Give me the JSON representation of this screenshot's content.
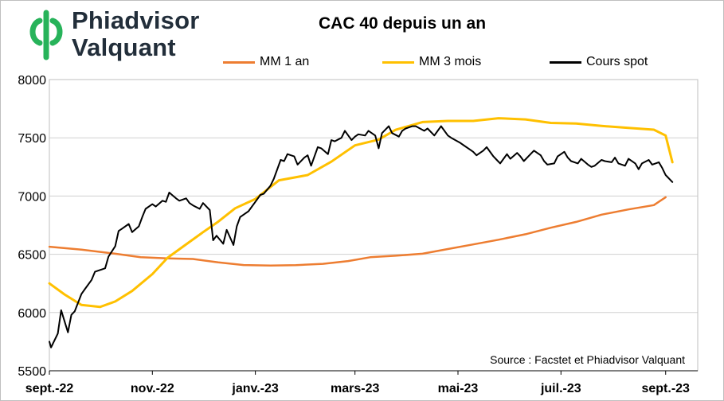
{
  "logo": {
    "line1": "Phiadvisor",
    "line2": "Valquant",
    "icon": "phi-logo-icon",
    "brand_green": "#27b35a",
    "brand_dark": "#222e3a"
  },
  "source": "Source : Facstet et Phiadvisor Valquant",
  "chart_data": {
    "type": "line",
    "title": "CAC 40 depuis un an",
    "xlabel": "",
    "ylabel": "",
    "ylim": [
      5500,
      8000
    ],
    "yticks": [
      5500,
      6000,
      6500,
      7000,
      7500,
      8000
    ],
    "xlim": [
      "2022-09-01",
      "2023-09-20"
    ],
    "xticks": [
      {
        "date": "2022-09-01",
        "label": "sept.-22"
      },
      {
        "date": "2022-11-01",
        "label": "nov.-22"
      },
      {
        "date": "2023-01-01",
        "label": "janv.-23"
      },
      {
        "date": "2023-03-01",
        "label": "mars-23"
      },
      {
        "date": "2023-05-01",
        "label": "mai-23"
      },
      {
        "date": "2023-07-01",
        "label": "juil.-23"
      },
      {
        "date": "2023-09-01",
        "label": "sept.-23"
      }
    ],
    "grid": "horizontal",
    "legend_position": "top",
    "series": [
      {
        "name": "MM 1 an",
        "color": "#ed7d31",
        "x": [
          "2022-09-01",
          "2022-09-20",
          "2022-10-10",
          "2022-10-25",
          "2022-11-10",
          "2022-11-25",
          "2022-12-10",
          "2022-12-25",
          "2023-01-10",
          "2023-01-25",
          "2023-02-10",
          "2023-02-25",
          "2023-03-10",
          "2023-03-25",
          "2023-04-10",
          "2023-04-25",
          "2023-05-10",
          "2023-05-25",
          "2023-06-10",
          "2023-06-25",
          "2023-07-10",
          "2023-07-25",
          "2023-08-10",
          "2023-08-25",
          "2023-09-01"
        ],
        "values": [
          6565,
          6540,
          6505,
          6475,
          6465,
          6460,
          6430,
          6408,
          6403,
          6407,
          6418,
          6442,
          6475,
          6488,
          6505,
          6545,
          6585,
          6625,
          6672,
          6728,
          6778,
          6840,
          6885,
          6922,
          6990
        ]
      },
      {
        "name": "MM 3 mois",
        "color": "#ffc000",
        "x": [
          "2022-09-01",
          "2022-09-10",
          "2022-09-20",
          "2022-10-01",
          "2022-10-10",
          "2022-10-20",
          "2022-11-01",
          "2022-11-10",
          "2022-11-20",
          "2022-12-01",
          "2022-12-10",
          "2022-12-20",
          "2023-01-01",
          "2023-01-15",
          "2023-02-01",
          "2023-02-15",
          "2023-03-01",
          "2023-03-15",
          "2023-03-25",
          "2023-04-10",
          "2023-04-25",
          "2023-05-10",
          "2023-05-25",
          "2023-06-10",
          "2023-06-25",
          "2023-07-10",
          "2023-07-25",
          "2023-08-10",
          "2023-08-25",
          "2023-09-01",
          "2023-09-05"
        ],
        "values": [
          6250,
          6155,
          6065,
          6048,
          6095,
          6185,
          6330,
          6470,
          6575,
          6690,
          6780,
          6895,
          6975,
          7135,
          7180,
          7295,
          7435,
          7485,
          7568,
          7635,
          7645,
          7645,
          7668,
          7658,
          7628,
          7622,
          7602,
          7585,
          7570,
          7520,
          7290
        ]
      },
      {
        "name": "Cours spot",
        "color": "#000000",
        "x": [
          "2022-09-01",
          "2022-09-02",
          "2022-09-06",
          "2022-09-08",
          "2022-09-12",
          "2022-09-14",
          "2022-09-16",
          "2022-09-20",
          "2022-09-22",
          "2022-09-26",
          "2022-09-28",
          "2022-09-30",
          "2022-10-04",
          "2022-10-06",
          "2022-10-10",
          "2022-10-12",
          "2022-10-14",
          "2022-10-18",
          "2022-10-20",
          "2022-10-24",
          "2022-10-26",
          "2022-10-28",
          "2022-11-01",
          "2022-11-03",
          "2022-11-07",
          "2022-11-09",
          "2022-11-11",
          "2022-11-15",
          "2022-11-17",
          "2022-11-21",
          "2022-11-23",
          "2022-11-25",
          "2022-11-29",
          "2022-12-01",
          "2022-12-05",
          "2022-12-07",
          "2022-12-09",
          "2022-12-13",
          "2022-12-15",
          "2022-12-19",
          "2022-12-21",
          "2022-12-23",
          "2022-12-28",
          "2023-01-02",
          "2023-01-04",
          "2023-01-06",
          "2023-01-10",
          "2023-01-12",
          "2023-01-16",
          "2023-01-18",
          "2023-01-20",
          "2023-01-24",
          "2023-01-26",
          "2023-01-30",
          "2023-02-01",
          "2023-02-03",
          "2023-02-07",
          "2023-02-09",
          "2023-02-13",
          "2023-02-15",
          "2023-02-17",
          "2023-02-21",
          "2023-02-23",
          "2023-02-27",
          "2023-03-01",
          "2023-03-03",
          "2023-03-07",
          "2023-03-09",
          "2023-03-13",
          "2023-03-15",
          "2023-03-17",
          "2023-03-21",
          "2023-03-23",
          "2023-03-27",
          "2023-03-29",
          "2023-03-31",
          "2023-04-04",
          "2023-04-06",
          "2023-04-11",
          "2023-04-13",
          "2023-04-17",
          "2023-04-19",
          "2023-04-21",
          "2023-04-25",
          "2023-04-27",
          "2023-05-02",
          "2023-05-04",
          "2023-05-08",
          "2023-05-10",
          "2023-05-12",
          "2023-05-16",
          "2023-05-18",
          "2023-05-22",
          "2023-05-24",
          "2023-05-26",
          "2023-05-30",
          "2023-06-01",
          "2023-06-05",
          "2023-06-07",
          "2023-06-09",
          "2023-06-13",
          "2023-06-15",
          "2023-06-19",
          "2023-06-21",
          "2023-06-23",
          "2023-06-27",
          "2023-06-29",
          "2023-07-03",
          "2023-07-05",
          "2023-07-07",
          "2023-07-11",
          "2023-07-13",
          "2023-07-17",
          "2023-07-19",
          "2023-07-21",
          "2023-07-25",
          "2023-07-27",
          "2023-07-31",
          "2023-08-02",
          "2023-08-04",
          "2023-08-08",
          "2023-08-10",
          "2023-08-14",
          "2023-08-16",
          "2023-08-18",
          "2023-08-22",
          "2023-08-24",
          "2023-08-28",
          "2023-08-30",
          "2023-09-01",
          "2023-09-05"
        ],
        "values": [
          5750,
          5700,
          5820,
          6020,
          5830,
          5980,
          6010,
          6160,
          6200,
          6280,
          6350,
          6360,
          6380,
          6480,
          6570,
          6700,
          6720,
          6760,
          6690,
          6740,
          6820,
          6890,
          6930,
          6910,
          6960,
          6950,
          7030,
          6980,
          6960,
          6980,
          6940,
          6920,
          6890,
          6940,
          6880,
          6620,
          6660,
          6590,
          6710,
          6580,
          6740,
          6820,
          6870,
          6970,
          7010,
          7020,
          7090,
          7150,
          7310,
          7300,
          7360,
          7340,
          7270,
          7330,
          7350,
          7260,
          7420,
          7410,
          7360,
          7480,
          7470,
          7500,
          7560,
          7480,
          7510,
          7530,
          7520,
          7560,
          7520,
          7410,
          7540,
          7600,
          7540,
          7510,
          7560,
          7580,
          7600,
          7600,
          7560,
          7580,
          7520,
          7560,
          7600,
          7520,
          7500,
          7460,
          7440,
          7400,
          7380,
          7350,
          7390,
          7420,
          7340,
          7310,
          7280,
          7360,
          7320,
          7370,
          7340,
          7300,
          7360,
          7390,
          7350,
          7300,
          7270,
          7280,
          7340,
          7380,
          7330,
          7300,
          7280,
          7320,
          7270,
          7250,
          7260,
          7310,
          7300,
          7290,
          7330,
          7280,
          7260,
          7320,
          7280,
          7230,
          7280,
          7310,
          7270,
          7290,
          7240,
          7180,
          7120
        ]
      }
    ]
  }
}
